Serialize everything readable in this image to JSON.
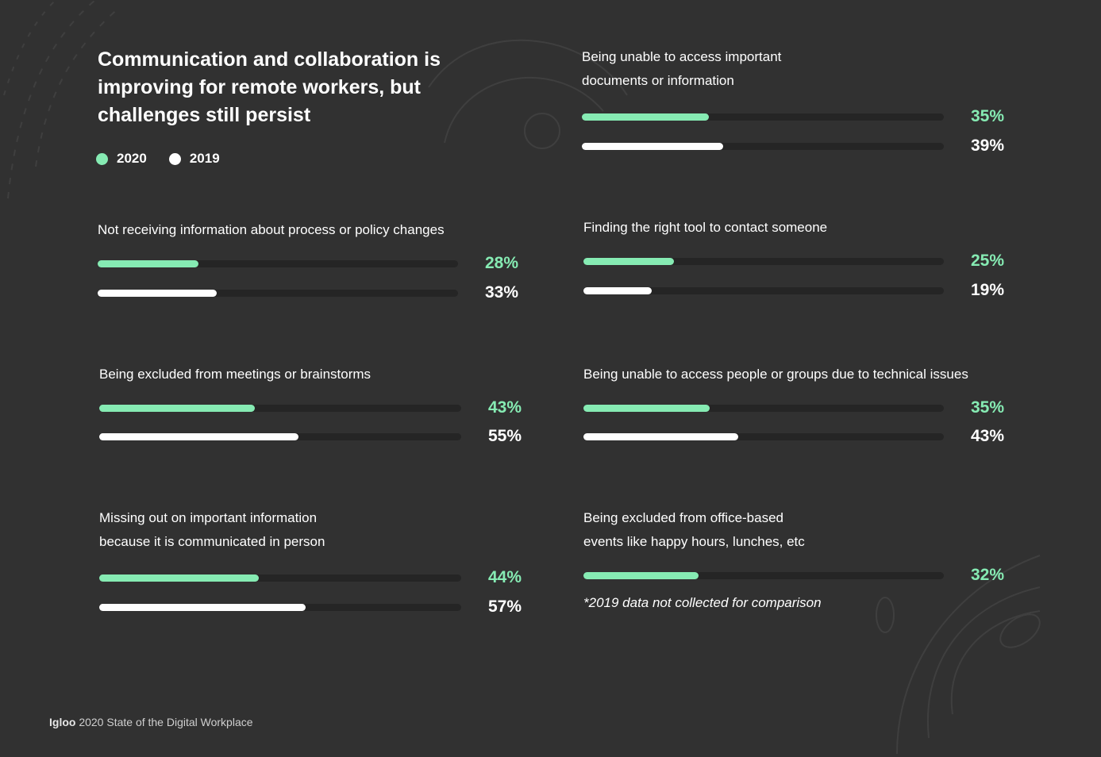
{
  "title": "Communication and collaboration is improving for remote workers, but challenges still persist",
  "legend": [
    {
      "label": "2020",
      "color": "#86ebb3"
    },
    {
      "label": "2019",
      "color": "#ffffff"
    }
  ],
  "colors": {
    "series_2020": "#86ebb3",
    "series_2019": "#ffffff",
    "track": "#252525",
    "background": "#313131"
  },
  "chart_data": {
    "type": "bar",
    "orientation": "horizontal",
    "unit": "%",
    "xlim": [
      0,
      100
    ],
    "grid": false,
    "legend_position": "top-left",
    "series_names": [
      "2020",
      "2019"
    ],
    "items": [
      {
        "label": "Being unable to access important\ndocuments or information",
        "values": [
          {
            "series": "2020",
            "value": 35,
            "text": "35%"
          },
          {
            "series": "2019",
            "value": 39,
            "text": "39%"
          }
        ]
      },
      {
        "label": "Not receiving information about process or policy changes",
        "values": [
          {
            "series": "2020",
            "value": 28,
            "text": "28%"
          },
          {
            "series": "2019",
            "value": 33,
            "text": "33%"
          }
        ]
      },
      {
        "label": "Finding the right tool to contact someone",
        "values": [
          {
            "series": "2020",
            "value": 25,
            "text": "25%"
          },
          {
            "series": "2019",
            "value": 19,
            "text": "19%"
          }
        ]
      },
      {
        "label": "Being excluded from meetings or brainstorms",
        "values": [
          {
            "series": "2020",
            "value": 43,
            "text": "43%"
          },
          {
            "series": "2019",
            "value": 55,
            "text": "55%"
          }
        ]
      },
      {
        "label": "Being unable to access people or groups due to technical issues",
        "values": [
          {
            "series": "2020",
            "value": 35,
            "text": "35%"
          },
          {
            "series": "2019",
            "value": 43,
            "text": "43%"
          }
        ]
      },
      {
        "label": "Missing out on important information\nbecause it is communicated in person",
        "values": [
          {
            "series": "2020",
            "value": 44,
            "text": "44%"
          },
          {
            "series": "2019",
            "value": 57,
            "text": "57%"
          }
        ]
      },
      {
        "label": "Being excluded from office-based\nevents like happy hours, lunches, etc",
        "values": [
          {
            "series": "2020",
            "value": 32,
            "text": "32%"
          }
        ],
        "note": "*2019 data not collected for comparison"
      }
    ]
  },
  "footer": {
    "brand": "Igloo",
    "text": "2020 State of the Digital Workplace"
  }
}
